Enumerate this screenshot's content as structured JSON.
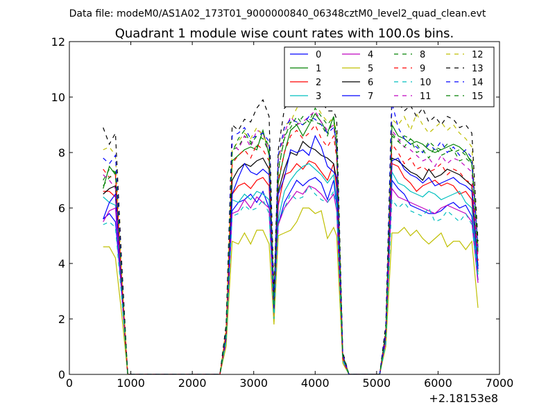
{
  "suptitle": "Data file: modeM0/AS1A02_173T01_9000000840_06348cztM0_level2_quad_clean.evt",
  "chart_data": {
    "type": "line",
    "title": "Quadrant 1 module wise count rates with 100.0s bins.",
    "xlabel": "",
    "ylabel": "",
    "xlim": [
      0,
      7000
    ],
    "ylim": [
      0,
      12
    ],
    "x_offset_label": "+2.18153e8",
    "xticks": [
      "0",
      "1000",
      "2000",
      "3000",
      "4000",
      "5000",
      "6000",
      "7000"
    ],
    "yticks": [
      "0",
      "2",
      "4",
      "6",
      "8",
      "10",
      "12"
    ],
    "legend_position": "top-right",
    "legend_ncol": 4,
    "x": [
      550,
      650,
      750,
      850,
      950,
      1050,
      1150,
      1250,
      1350,
      1450,
      1550,
      1650,
      1750,
      1850,
      1950,
      2050,
      2150,
      2250,
      2350,
      2450,
      2550,
      2650,
      2750,
      2850,
      2950,
      3050,
      3150,
      3250,
      3330,
      3400,
      3500,
      3600,
      3700,
      3800,
      3900,
      4000,
      4100,
      4200,
      4300,
      4350,
      4450,
      4550,
      4650,
      4750,
      4850,
      4950,
      5050,
      5150,
      5250,
      5350,
      5450,
      5550,
      5650,
      5750,
      5850,
      5950,
      6050,
      6150,
      6250,
      6350,
      6450,
      6550,
      6650
    ],
    "series": [
      {
        "name": "0",
        "color": "#0000ff",
        "dash": "solid",
        "values": [
          5.6,
          5.8,
          5.5,
          3.0,
          0,
          0,
          0,
          0,
          0,
          0,
          0,
          0,
          0,
          0,
          0,
          0,
          0,
          0,
          0,
          0,
          1.2,
          5.9,
          6.2,
          6.3,
          6.5,
          6.2,
          6.6,
          6.0,
          2.1,
          5.4,
          6.2,
          6.6,
          7.0,
          6.8,
          7.0,
          7.1,
          6.9,
          6.3,
          7.0,
          6.1,
          0.5,
          0,
          0,
          0,
          0,
          0,
          0,
          1.2,
          7.0,
          6.7,
          6.5,
          6.1,
          6.0,
          5.9,
          5.8,
          5.8,
          5.9,
          6.1,
          6.2,
          6.0,
          6.1,
          5.7,
          3.4
        ]
      },
      {
        "name": "1",
        "color": "#008000",
        "dash": "solid",
        "values": [
          6.7,
          7.5,
          7.2,
          3.4,
          0,
          0,
          0,
          0,
          0,
          0,
          0,
          0,
          0,
          0,
          0,
          0,
          0,
          0,
          0,
          0,
          1.5,
          7.7,
          7.9,
          8.1,
          8.2,
          8.1,
          8.8,
          7.9,
          2.5,
          6.9,
          8.0,
          8.8,
          9.0,
          8.6,
          9.0,
          9.4,
          9.1,
          8.7,
          9.3,
          7.9,
          0.6,
          0,
          0,
          0,
          0,
          0,
          0,
          1.5,
          9.0,
          8.6,
          8.5,
          8.3,
          8.4,
          8.3,
          8.1,
          8.0,
          8.1,
          8.2,
          8.3,
          8.2,
          8.0,
          7.6,
          4.6
        ]
      },
      {
        "name": "2",
        "color": "#ff0000",
        "dash": "solid",
        "values": [
          6.6,
          6.6,
          6.4,
          3.2,
          0,
          0,
          0,
          0,
          0,
          0,
          0,
          0,
          0,
          0,
          0,
          0,
          0,
          0,
          0,
          0,
          1.3,
          6.5,
          6.8,
          6.9,
          6.7,
          7.0,
          7.1,
          6.8,
          2.3,
          6.1,
          7.2,
          7.3,
          7.6,
          7.4,
          7.7,
          7.6,
          7.3,
          7.0,
          7.6,
          6.7,
          0.6,
          0,
          0,
          0,
          0,
          0,
          0,
          1.3,
          7.6,
          7.5,
          7.1,
          6.9,
          6.6,
          6.8,
          6.9,
          7.0,
          6.8,
          6.9,
          6.8,
          6.5,
          6.6,
          6.3,
          3.7
        ]
      },
      {
        "name": "3",
        "color": "#00bfbf",
        "dash": "solid",
        "values": [
          6.4,
          6.2,
          6.1,
          3.0,
          0,
          0,
          0,
          0,
          0,
          0,
          0,
          0,
          0,
          0,
          0,
          0,
          0,
          0,
          0,
          0,
          1.3,
          6.3,
          6.2,
          6.5,
          6.3,
          6.6,
          6.5,
          6.3,
          2.2,
          5.6,
          6.6,
          7.0,
          7.3,
          7.5,
          7.6,
          7.4,
          7.2,
          6.9,
          7.2,
          6.3,
          0.5,
          0,
          0,
          0,
          0,
          0,
          0,
          1.2,
          7.3,
          6.9,
          6.8,
          6.6,
          6.5,
          6.4,
          6.6,
          6.5,
          6.3,
          6.4,
          6.5,
          6.6,
          6.2,
          6.0,
          3.6
        ]
      },
      {
        "name": "4",
        "color": "#bf00bf",
        "dash": "solid",
        "values": [
          5.5,
          5.9,
          6.0,
          3.0,
          0,
          0,
          0,
          0,
          0,
          0,
          0,
          0,
          0,
          0,
          0,
          0,
          0,
          0,
          0,
          0,
          1.2,
          5.8,
          5.9,
          6.3,
          6.0,
          6.4,
          6.2,
          6.0,
          2.1,
          5.4,
          6.0,
          6.3,
          6.6,
          6.5,
          6.8,
          6.7,
          6.5,
          6.2,
          6.5,
          5.9,
          0.5,
          0,
          0,
          0,
          0,
          0,
          0,
          1.2,
          6.7,
          6.4,
          6.3,
          6.2,
          6.1,
          6.0,
          5.9,
          5.8,
          6.0,
          6.1,
          6.0,
          5.9,
          5.8,
          5.5,
          3.3
        ]
      },
      {
        "name": "5",
        "color": "#bfbf00",
        "dash": "solid",
        "values": [
          4.6,
          4.6,
          4.2,
          2.2,
          0,
          0,
          0,
          0,
          0,
          0,
          0,
          0,
          0,
          0,
          0,
          0,
          0,
          0,
          0,
          0,
          1.0,
          4.8,
          4.7,
          5.1,
          4.7,
          5.2,
          5.2,
          4.7,
          1.8,
          5.0,
          5.1,
          5.2,
          5.5,
          6.0,
          6.0,
          5.8,
          5.9,
          4.9,
          5.3,
          5.0,
          0.4,
          0,
          0,
          0,
          0,
          0,
          0,
          1.0,
          5.1,
          5.1,
          5.3,
          5.0,
          5.2,
          4.9,
          4.7,
          4.9,
          5.1,
          4.6,
          4.8,
          4.8,
          4.5,
          4.8,
          2.4
        ]
      },
      {
        "name": "6",
        "color": "#000000",
        "dash": "solid",
        "values": [
          6.5,
          6.7,
          6.8,
          3.3,
          0,
          0,
          0,
          0,
          0,
          0,
          0,
          0,
          0,
          0,
          0,
          0,
          0,
          0,
          0,
          0,
          1.4,
          7.0,
          7.4,
          7.6,
          7.5,
          7.7,
          7.8,
          7.4,
          2.4,
          6.6,
          7.4,
          8.0,
          7.9,
          8.4,
          8.2,
          8.1,
          7.9,
          7.8,
          7.6,
          7.0,
          0.6,
          0,
          0,
          0,
          0,
          0,
          0,
          1.4,
          7.8,
          7.7,
          7.5,
          7.3,
          7.2,
          7.0,
          7.4,
          7.1,
          7.2,
          7.4,
          7.3,
          7.2,
          7.0,
          6.8,
          3.9
        ]
      },
      {
        "name": "7",
        "color": "#0000ff",
        "dash": "solid",
        "values": [
          5.6,
          6.2,
          6.5,
          3.2,
          0,
          0,
          0,
          0,
          0,
          0,
          0,
          0,
          0,
          0,
          0,
          0,
          0,
          0,
          0,
          0,
          1.3,
          6.5,
          7.1,
          7.6,
          7.3,
          7.2,
          7.4,
          7.2,
          2.3,
          6.5,
          7.1,
          8.1,
          8.0,
          8.1,
          7.9,
          8.6,
          8.2,
          7.5,
          7.3,
          7.1,
          0.6,
          0,
          0,
          0,
          0,
          0,
          0,
          1.4,
          7.7,
          7.8,
          7.4,
          7.2,
          7.1,
          6.9,
          7.1,
          6.8,
          6.9,
          7.0,
          7.1,
          6.9,
          6.8,
          6.6,
          3.8
        ]
      },
      {
        "name": "8",
        "color": "#008000",
        "dash": "dashed",
        "values": [
          7.0,
          7.4,
          7.3,
          3.6,
          0,
          0,
          0,
          0,
          0,
          0,
          0,
          0,
          0,
          0,
          0,
          0,
          0,
          0,
          0,
          0,
          1.6,
          8.1,
          8.2,
          8.6,
          8.4,
          8.2,
          8.7,
          8.2,
          2.6,
          7.4,
          8.5,
          9.1,
          9.0,
          9.3,
          9.1,
          9.6,
          9.3,
          9.0,
          9.3,
          8.6,
          0.7,
          0,
          0,
          0,
          0,
          0,
          0,
          1.6,
          8.7,
          8.4,
          8.6,
          8.5,
          8.3,
          8.0,
          8.4,
          8.2,
          8.1,
          8.3,
          8.0,
          8.1,
          7.9,
          7.7,
          4.4
        ]
      },
      {
        "name": "9",
        "color": "#ff0000",
        "dash": "dashed",
        "values": [
          7.4,
          7.1,
          7.2,
          3.5,
          0,
          0,
          0,
          0,
          0,
          0,
          0,
          0,
          0,
          0,
          0,
          0,
          0,
          0,
          0,
          0,
          1.5,
          7.6,
          7.9,
          8.1,
          7.8,
          8.3,
          8.1,
          7.7,
          2.5,
          7.0,
          8.0,
          8.6,
          8.8,
          8.5,
          8.7,
          9.0,
          8.5,
          8.2,
          8.6,
          7.8,
          0.6,
          0,
          0,
          0,
          0,
          0,
          0,
          1.5,
          8.3,
          8.0,
          7.6,
          7.8,
          7.4,
          7.5,
          7.3,
          7.4,
          7.6,
          7.2,
          7.4,
          7.3,
          7.0,
          6.9,
          4.1
        ]
      },
      {
        "name": "10",
        "color": "#00bfbf",
        "dash": "dashed",
        "values": [
          5.4,
          5.5,
          5.3,
          2.8,
          0,
          0,
          0,
          0,
          0,
          0,
          0,
          0,
          0,
          0,
          0,
          0,
          0,
          0,
          0,
          0,
          1.2,
          5.7,
          5.8,
          6.1,
          5.9,
          6.0,
          6.3,
          5.8,
          2.0,
          5.5,
          6.0,
          6.5,
          6.3,
          6.4,
          6.8,
          6.5,
          6.3,
          6.2,
          6.6,
          6.0,
          0.5,
          0,
          0,
          0,
          0,
          0,
          0,
          1.1,
          6.3,
          6.0,
          6.2,
          5.9,
          5.8,
          5.7,
          6.0,
          5.5,
          5.6,
          5.9,
          5.7,
          5.5,
          5.8,
          5.4,
          3.5
        ]
      },
      {
        "name": "11",
        "color": "#bf00bf",
        "dash": "dashed",
        "values": [
          7.2,
          7.0,
          6.7,
          3.4,
          0,
          0,
          0,
          0,
          0,
          0,
          0,
          0,
          0,
          0,
          0,
          0,
          0,
          0,
          0,
          0,
          1.5,
          8.3,
          8.1,
          8.6,
          8.2,
          8.8,
          8.7,
          8.0,
          2.6,
          7.7,
          8.7,
          9.3,
          9.0,
          9.1,
          9.3,
          9.5,
          9.1,
          8.8,
          9.0,
          8.0,
          0.7,
          0,
          0,
          0,
          0,
          0,
          0,
          1.5,
          8.8,
          8.5,
          8.2,
          8.1,
          7.9,
          7.7,
          7.8,
          7.5,
          7.9,
          7.6,
          7.8,
          7.7,
          7.5,
          7.3,
          4.3
        ]
      },
      {
        "name": "12",
        "color": "#bfbf00",
        "dash": "dashed",
        "values": [
          8.1,
          8.2,
          7.9,
          3.8,
          0,
          0,
          0,
          0,
          0,
          0,
          0,
          0,
          0,
          0,
          0,
          0,
          0,
          0,
          0,
          0,
          1.7,
          8.1,
          8.4,
          8.7,
          8.5,
          8.9,
          8.6,
          8.2,
          2.7,
          7.7,
          9.0,
          9.1,
          9.6,
          9.7,
          10.1,
          9.8,
          9.4,
          9.1,
          9.2,
          8.7,
          0.7,
          0,
          0,
          0,
          0,
          0,
          0,
          1.7,
          9.2,
          9.0,
          9.3,
          8.8,
          9.4,
          9.0,
          8.7,
          8.9,
          9.1,
          8.8,
          9.0,
          8.7,
          8.5,
          8.2,
          4.6
        ]
      },
      {
        "name": "13",
        "color": "#000000",
        "dash": "dashed",
        "values": [
          8.9,
          8.3,
          8.7,
          4.1,
          0,
          0,
          0,
          0,
          0,
          0,
          0,
          0,
          0,
          0,
          0,
          0,
          0,
          0,
          0,
          0,
          1.8,
          9.0,
          8.8,
          9.2,
          9.1,
          9.6,
          9.9,
          9.3,
          2.9,
          8.1,
          9.6,
          9.8,
          10.1,
          10.4,
          10.3,
          10.1,
          9.9,
          9.5,
          9.5,
          9.2,
          0.8,
          0,
          0,
          0,
          0,
          0,
          0,
          1.8,
          10.2,
          9.8,
          9.5,
          9.7,
          9.3,
          9.6,
          9.1,
          9.3,
          9.0,
          9.3,
          9.2,
          8.9,
          9.0,
          8.7,
          4.8
        ]
      },
      {
        "name": "14",
        "color": "#0000ff",
        "dash": "dashed",
        "values": [
          7.8,
          7.6,
          7.9,
          3.7,
          0,
          0,
          0,
          0,
          0,
          0,
          0,
          0,
          0,
          0,
          0,
          0,
          0,
          0,
          0,
          0,
          1.6,
          8.6,
          8.7,
          8.9,
          8.5,
          8.6,
          8.7,
          8.4,
          2.7,
          7.9,
          8.9,
          9.2,
          9.1,
          9.0,
          9.3,
          9.2,
          9.0,
          8.7,
          8.9,
          8.4,
          0.7,
          0,
          0,
          0,
          0,
          0,
          0,
          1.6,
          9.8,
          8.9,
          8.5,
          8.3,
          8.2,
          8.0,
          8.3,
          8.1,
          8.4,
          8.0,
          8.2,
          7.9,
          8.1,
          7.8,
          4.5
        ]
      },
      {
        "name": "15",
        "color": "#008000",
        "dash": "dashed",
        "values": [
          6.8,
          7.1,
          7.3,
          3.5,
          0,
          0,
          0,
          0,
          0,
          0,
          0,
          0,
          0,
          0,
          0,
          0,
          0,
          0,
          0,
          0,
          1.5,
          8.0,
          8.5,
          8.8,
          8.3,
          8.6,
          8.5,
          8.0,
          2.5,
          7.3,
          8.6,
          8.9,
          9.3,
          9.0,
          9.2,
          9.1,
          9.0,
          8.6,
          9.3,
          8.3,
          0.7,
          0,
          0,
          0,
          0,
          0,
          0,
          1.5,
          8.6,
          8.4,
          8.2,
          8.5,
          8.0,
          8.1,
          7.8,
          8.2,
          7.9,
          8.0,
          8.1,
          7.7,
          7.8,
          7.6,
          4.4
        ]
      }
    ]
  }
}
